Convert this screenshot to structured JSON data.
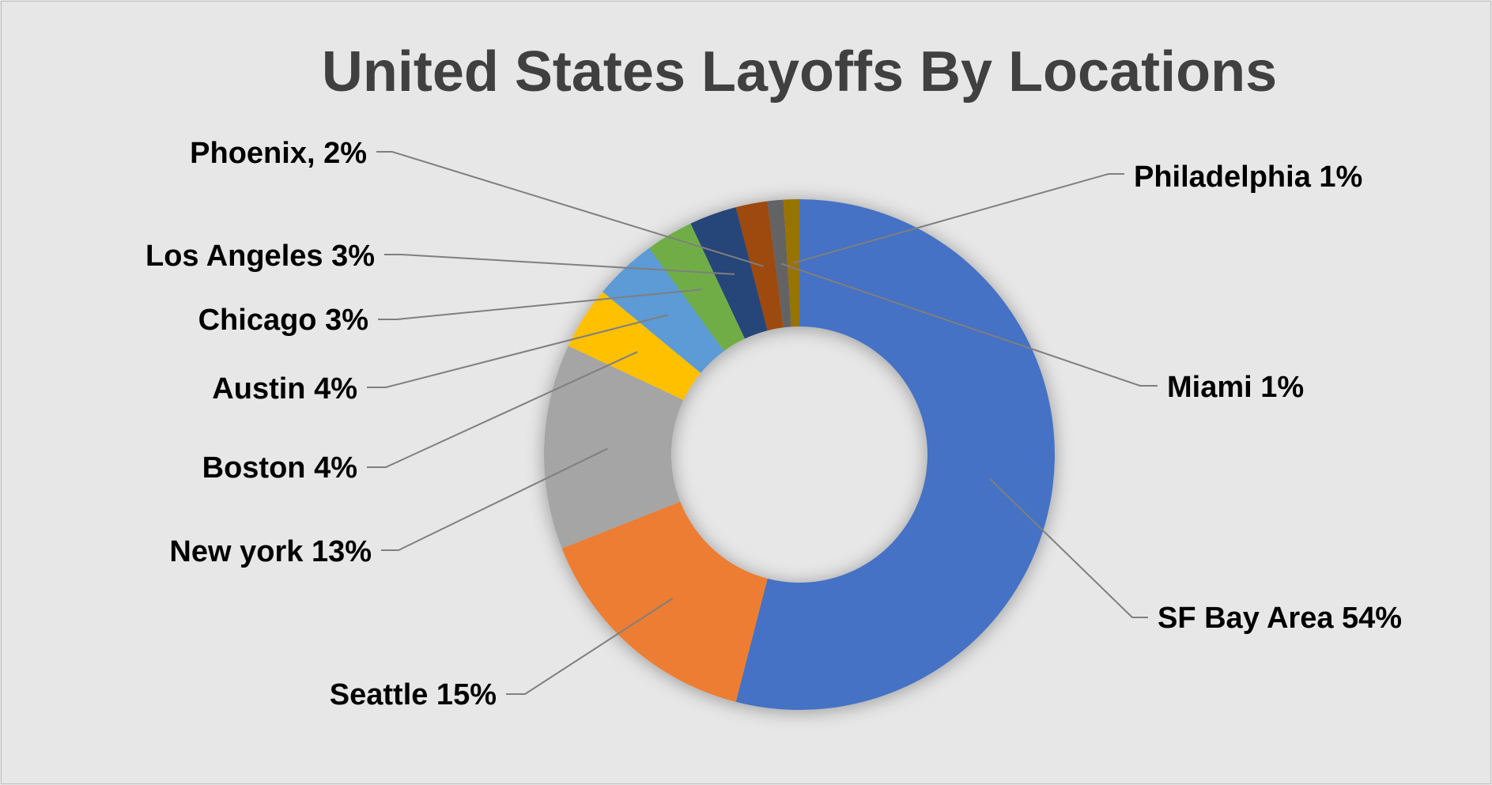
{
  "chart_data": {
    "type": "pie",
    "variant": "doughnut",
    "title": "United States Layoffs By Locations",
    "legend": "none",
    "slices": [
      {
        "category": "SF Bay Area",
        "value": 54,
        "label": "SF Bay Area 54%",
        "color": "#4472c4"
      },
      {
        "category": "Seattle",
        "value": 15,
        "label": "Seattle 15%",
        "color": "#ed7d31"
      },
      {
        "category": "New york",
        "value": 13,
        "label": "New york 13%",
        "color": "#a5a5a5"
      },
      {
        "category": "Boston",
        "value": 4,
        "label": "Boston 4%",
        "color": "#ffc000"
      },
      {
        "category": "Austin",
        "value": 4,
        "label": "Austin 4%",
        "color": "#5b9bd5"
      },
      {
        "category": "Chicago",
        "value": 3,
        "label": "Chicago 3%",
        "color": "#70ad47"
      },
      {
        "category": "Los Angeles",
        "value": 3,
        "label": "Los Angeles 3%",
        "color": "#264478"
      },
      {
        "category": "Phoenix",
        "value": 2,
        "label": "Phoenix, 2%",
        "color": "#9e480e"
      },
      {
        "category": "Miami",
        "value": 1,
        "label": "Miami 1%",
        "color": "#636363"
      },
      {
        "category": "Philadelphia",
        "value": 1,
        "label": "Philadelphia 1%",
        "color": "#997300"
      }
    ]
  }
}
